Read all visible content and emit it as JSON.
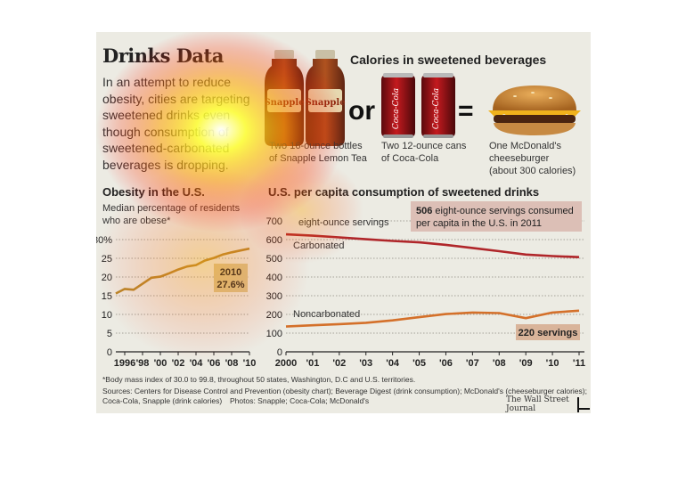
{
  "title": "Drinks Data",
  "intro": "In an attempt to reduce obesity, cities are targeting sweetened drinks even though consumption of sweetened-carbonated beverages is dropping.",
  "calories": {
    "heading": "Calories in sweetened beverages",
    "snapple_label": "Snapple",
    "snapple_caption_1": "Two 16-ounce bottles",
    "snapple_caption_2": "of Snapple Lemon Tea",
    "or": "or",
    "equals": "=",
    "coke_label": "Coca-Cola",
    "coke_caption_1": "Two 12-ounce cans",
    "coke_caption_2": "of Coca-Cola",
    "burger_caption_1": "One McDonald's",
    "burger_caption_2": "cheeseburger",
    "burger_caption_3": "(about 300 calories)"
  },
  "obesity": {
    "heading": "Obesity in the U.S.",
    "sub_1": "Median percentage of residents",
    "sub_2": "who are obese*",
    "annotation_year": "2010",
    "annotation_value": "27.6%"
  },
  "consumption": {
    "heading": "U.S. per capita consumption of sweetened drinks",
    "unit_label": "eight-ounce servings",
    "callout_bold": "506",
    "callout_1": " eight-ounce servings consumed",
    "callout_2": "per capita in the U.S. in 2011",
    "carbonated": "Carbonated",
    "noncarbonated": "Noncarbonated",
    "servings_callout": "220 servings"
  },
  "footnote": "*Body mass index of 30.0 to 99.8, throughout 50 states, Washington, D.C and U.S. territories.",
  "sources_1": "Sources: Centers for Disease Control and Prevention (obesity chart); Beverage Digest (drink consumption); McDonald's (cheeseburger calories);",
  "sources_2": "Coca-Cola, Snapple (drink calories)",
  "photos": "Photos: Snapple; Coca-Cola; McDonald's",
  "publisher": "The Wall Street Journal",
  "colors": {
    "obesity_line": "#b8892c",
    "carbonated": "#b0262a",
    "noncarbonated": "#d4702a",
    "callout_bg": "#dcbfb6",
    "annot_bg": "#d8c48d"
  },
  "chart_data": [
    {
      "type": "line",
      "title": "Obesity in the U.S.",
      "ylabel": "Median percentage of residents who are obese*",
      "x": [
        1995,
        1996,
        1997,
        1998,
        1999,
        2000,
        2001,
        2002,
        2003,
        2004,
        2005,
        2006,
        2007,
        2008,
        2009,
        2010
      ],
      "x_tick_labels": [
        "1996",
        "'98",
        "'00",
        "'02",
        "'04",
        "'06",
        "'08",
        "'10"
      ],
      "x_tick_values": [
        1996,
        1998,
        2000,
        2002,
        2004,
        2006,
        2008,
        2010
      ],
      "y_tick_labels": [
        "0",
        "5",
        "10",
        "15",
        "20",
        "25",
        "30%"
      ],
      "y_tick_values": [
        0,
        5,
        10,
        15,
        20,
        25,
        30
      ],
      "ylim": [
        0,
        30
      ],
      "xlim": [
        1995,
        2010
      ],
      "series": [
        {
          "values": [
            15.6,
            16.8,
            16.6,
            18.2,
            19.8,
            20.1,
            21.0,
            22.0,
            22.8,
            23.2,
            24.4,
            25.1,
            26.0,
            26.6,
            27.1,
            27.6
          ]
        }
      ],
      "annotations": [
        "2010",
        "27.6%"
      ]
    },
    {
      "type": "line",
      "title": "U.S. per capita consumption of sweetened drinks",
      "ylabel": "eight-ounce servings",
      "x": [
        2000,
        2001,
        2002,
        2003,
        2004,
        2005,
        2006,
        2007,
        2008,
        2009,
        2010,
        2011
      ],
      "x_tick_labels": [
        "2000",
        "'01",
        "'02",
        "'03",
        "'04",
        "'05",
        "'06",
        "'07",
        "'08",
        "'09",
        "'10",
        "'11"
      ],
      "y_tick_labels": [
        "0",
        "100",
        "200",
        "300",
        "400",
        "500",
        "600",
        "700"
      ],
      "y_tick_values": [
        0,
        100,
        200,
        300,
        400,
        500,
        600,
        700
      ],
      "ylim": [
        0,
        700
      ],
      "xlim": [
        2000,
        2011
      ],
      "series": [
        {
          "name": "Carbonated",
          "values": [
            628,
            621,
            612,
            602,
            593,
            585,
            572,
            555,
            538,
            520,
            512,
            506
          ]
        },
        {
          "name": "Noncarbonated",
          "values": [
            135,
            142,
            148,
            155,
            168,
            185,
            202,
            210,
            207,
            180,
            210,
            220
          ]
        }
      ],
      "annotations": [
        "506 eight-ounce servings consumed per capita in the U.S. in 2011",
        "220 servings"
      ]
    }
  ]
}
